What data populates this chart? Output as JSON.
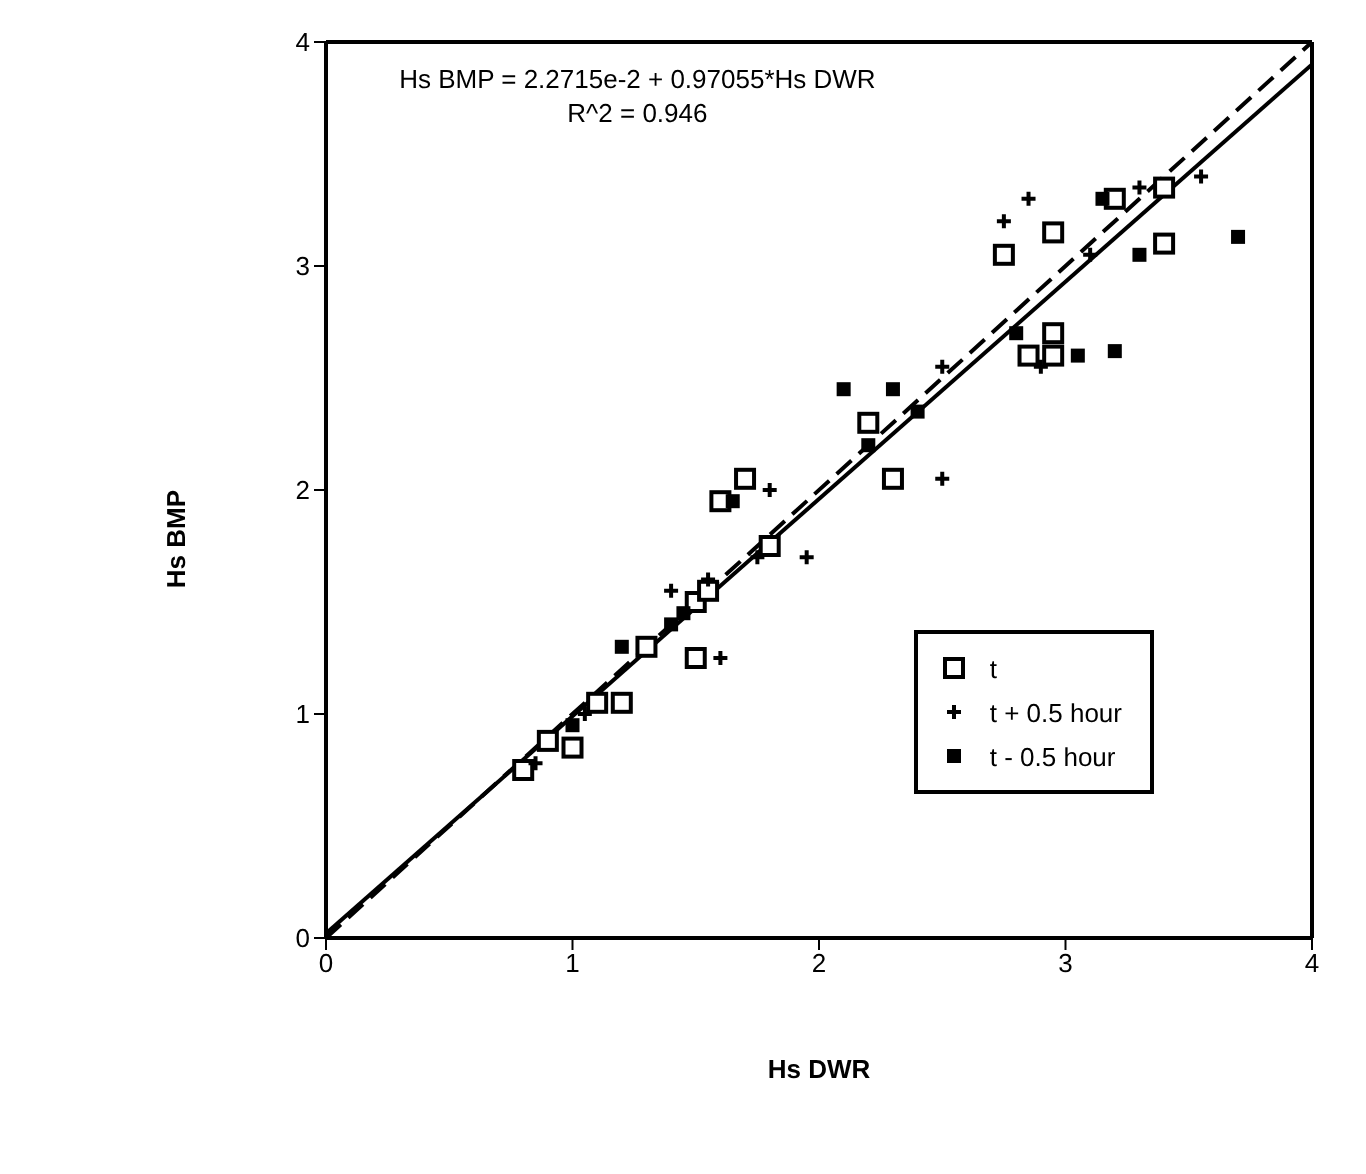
{
  "chart_data": {
    "type": "scatter",
    "xlabel": "Hs DWR",
    "ylabel": "Hs BMP",
    "xlim": [
      0,
      4
    ],
    "ylim": [
      0,
      4
    ],
    "xticks": [
      0,
      1,
      2,
      3,
      4
    ],
    "yticks": [
      0,
      1,
      2,
      3,
      4
    ],
    "grid": false,
    "legend": "bottom right",
    "annotations": [
      "Hs BMP = 2.2715e-2 + 0.97055*Hs DWR",
      "R^2 = 0.946"
    ],
    "series": [
      {
        "name": "t",
        "color": "#000000",
        "marker": "square",
        "x": [
          0.8,
          0.9,
          1.0,
          1.1,
          1.2,
          1.5,
          1.55,
          1.5,
          1.8,
          1.7,
          2.2,
          2.3,
          2.75,
          2.95,
          2.95,
          2.95,
          3.4,
          3.4,
          3.2,
          2.85,
          1.3,
          1.6
        ],
        "values": [
          0.75,
          0.88,
          0.85,
          1.05,
          1.05,
          1.5,
          1.55,
          1.25,
          1.75,
          2.05,
          2.3,
          2.05,
          3.05,
          3.15,
          2.7,
          2.6,
          3.1,
          3.35,
          3.3,
          2.6,
          1.3,
          1.95
        ]
      },
      {
        "name": "t + 0.5 hour",
        "color": "#000000",
        "marker": "cross",
        "x": [
          0.85,
          1.05,
          1.4,
          1.55,
          1.8,
          1.95,
          2.5,
          2.5,
          2.9,
          3.3,
          3.55,
          2.85,
          1.75,
          1.6,
          2.75,
          3.1
        ],
        "values": [
          0.78,
          1.0,
          1.55,
          1.6,
          2.0,
          1.7,
          2.05,
          2.55,
          2.55,
          3.35,
          3.4,
          3.3,
          1.7,
          1.25,
          3.2,
          3.05
        ]
      },
      {
        "name": "t - 0.5 hour",
        "color": "#000000",
        "marker": "square",
        "x": [
          1.0,
          1.2,
          1.45,
          1.65,
          2.1,
          2.3,
          2.2,
          2.4,
          3.2,
          3.05,
          3.7,
          3.15,
          2.8,
          1.4,
          3.3
        ],
        "values": [
          0.95,
          1.3,
          1.45,
          1.95,
          2.45,
          2.45,
          2.2,
          2.35,
          2.62,
          2.6,
          3.13,
          3.3,
          2.7,
          1.4,
          3.05
        ]
      },
      {
        "type": "line",
        "color": "#000000",
        "line_style": "solid",
        "marker": "none",
        "x": [
          0,
          4
        ],
        "values": [
          0.02,
          3.9
        ]
      },
      {
        "type": "line",
        "color": "#000000",
        "line_style": "dashed",
        "marker": "none",
        "x": [
          0,
          4
        ],
        "values": [
          0,
          4
        ]
      }
    ]
  }
}
